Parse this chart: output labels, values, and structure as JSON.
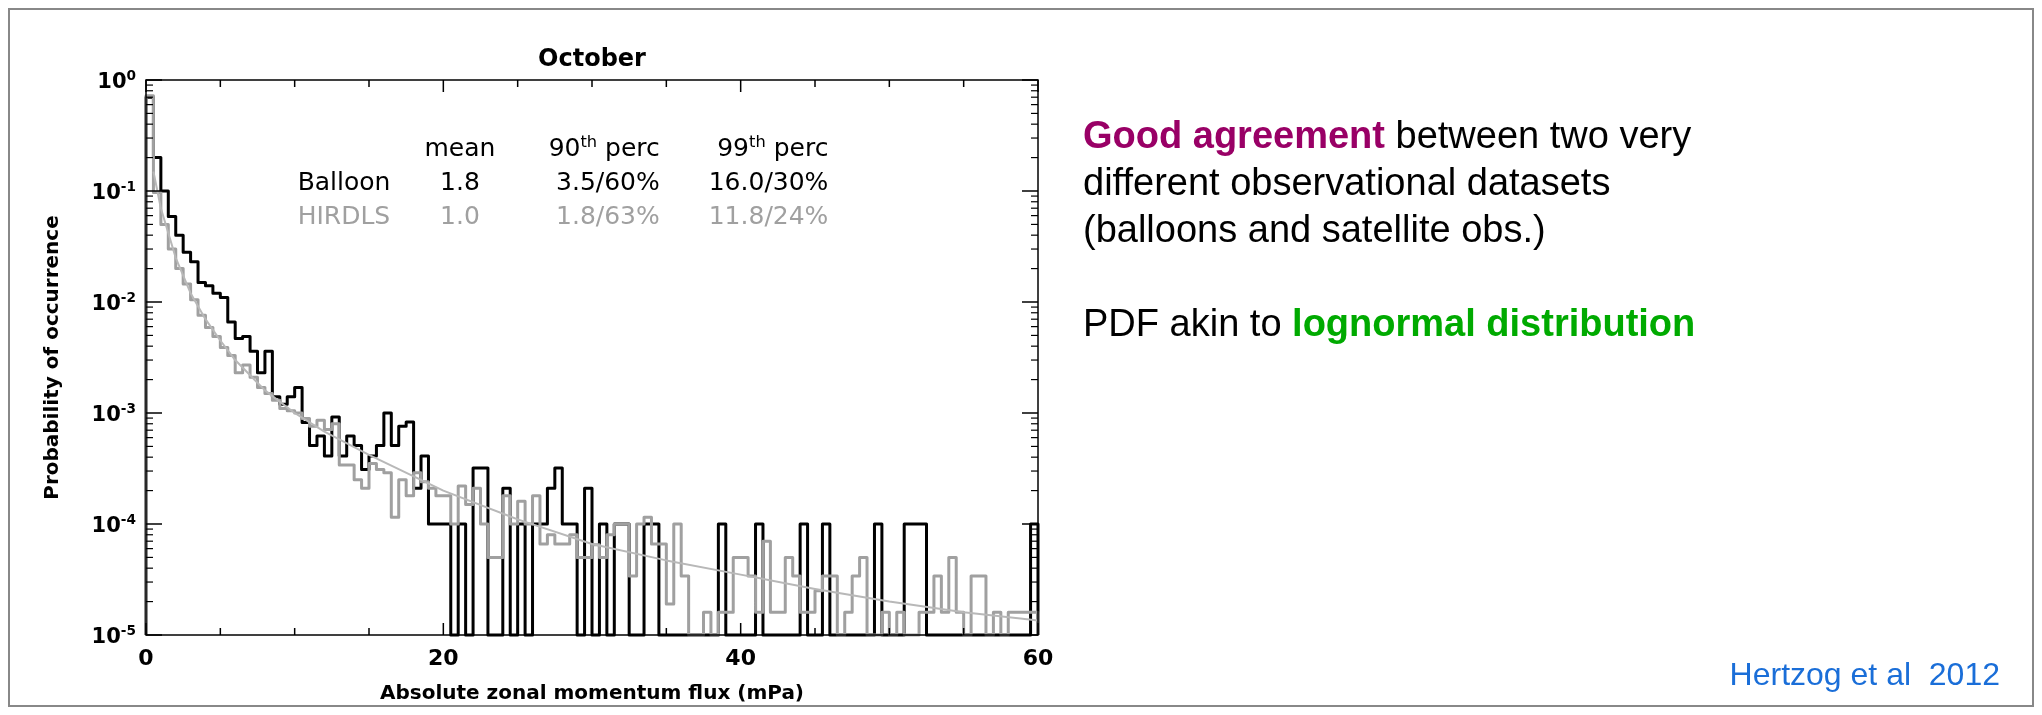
{
  "chart_data": {
    "type": "histogram",
    "title": "October",
    "xlabel": "Absolute zonal momentum flux (mPa)",
    "ylabel": "Probability of occurrence",
    "bins": [
      0,
      0.5,
      1,
      1.5,
      2,
      2.5,
      3,
      3.5,
      4,
      4.5,
      5,
      5.5,
      6,
      6.5,
      7,
      7.5,
      8,
      8.5,
      9,
      9.5,
      10,
      10.5,
      11,
      11.5,
      12,
      12.5,
      13,
      13.5,
      14,
      14.5,
      15,
      15.5,
      16,
      16.5,
      17,
      17.5,
      18,
      18.5,
      19,
      19.5,
      20,
      20.5,
      21,
      21.5,
      22,
      22.5,
      23,
      23.5,
      24,
      24.5,
      25,
      25.5,
      26,
      26.5,
      27,
      27.5,
      28,
      28.5,
      29,
      29.5,
      30,
      30.5,
      31,
      31.5,
      32,
      32.5,
      33,
      33.5,
      34,
      34.5,
      35,
      35.5,
      36,
      36.5,
      37,
      37.5,
      38,
      38.5,
      39,
      39.5,
      40,
      40.5,
      41,
      41.5,
      42,
      42.5,
      43,
      43.5,
      44,
      44.5,
      45,
      45.5,
      46,
      46.5,
      47,
      47.5,
      48,
      48.5,
      49,
      49.5,
      50,
      50.5,
      51,
      51.5,
      52,
      52.5,
      53,
      53.5,
      54,
      54.5,
      55,
      55.5,
      56,
      56.5,
      57,
      57.5,
      58,
      58.5,
      59,
      59.5,
      60
    ],
    "series": [
      {
        "name": "Balloon",
        "color": "#000000",
        "values": [
          0.7,
          0.2,
          0.1,
          0.059,
          0.04,
          0.028,
          0.023,
          0.015,
          0.014,
          0.012,
          0.011,
          0.0066,
          0.0047,
          0.0049,
          0.0036,
          0.0023,
          0.0036,
          0.0014,
          0.0012,
          0.0014,
          0.0017,
          0.00082,
          0.00051,
          0.00062,
          0.00041,
          0.00092,
          0.00041,
          0.00062,
          0.00051,
          0.00031,
          0.00041,
          0.00051,
          0.001,
          0.00051,
          0.00076,
          0.00083,
          0.00021,
          0.00041,
          0.0001,
          0.0001,
          0.0001,
          1e-05,
          0.0001,
          1e-05,
          0.00032,
          0.00032,
          1e-05,
          1e-05,
          0.00021,
          1e-05,
          0.0001,
          1e-05,
          0.0001,
          0.0001,
          0.00021,
          0.00032,
          0.0001,
          0.0001,
          1e-05,
          0.00021,
          1e-05,
          0.0001,
          1e-05,
          0.0001,
          0.0001,
          1e-05,
          1e-05,
          0.0001,
          0.0001,
          1e-05,
          1e-05,
          1e-05,
          1e-05,
          1e-05,
          1e-05,
          1e-05,
          1e-05,
          0.0001,
          1e-05,
          1e-05,
          1e-05,
          1e-05,
          0.0001,
          1e-05,
          1e-05,
          1e-05,
          1e-05,
          1e-05,
          0.0001,
          1e-05,
          1e-05,
          0.0001,
          1e-05,
          1e-05,
          1e-05,
          1e-05,
          1e-05,
          1e-05,
          0.0001,
          1e-05,
          1e-05,
          1e-05,
          0.0001,
          0.0001,
          0.0001,
          1e-05,
          1e-05,
          1e-05,
          1e-05,
          1e-05,
          1e-05,
          1e-05,
          1e-05,
          1e-05,
          1e-05,
          1e-05,
          1e-05,
          1e-05,
          1e-05,
          0.0001
        ]
      },
      {
        "name": "HIRDLS",
        "color": "#a0a0a0",
        "values": [
          0.72,
          0.097,
          0.05,
          0.03,
          0.02,
          0.0145,
          0.0105,
          0.0076,
          0.0059,
          0.0049,
          0.0039,
          0.0033,
          0.0023,
          0.0027,
          0.0021,
          0.0017,
          0.0015,
          0.0013,
          0.0011,
          0.00105,
          0.001,
          0.00089,
          0.00076,
          0.00086,
          0.00071,
          0.0008,
          0.00034,
          0.00034,
          0.00025,
          0.00021,
          0.00035,
          0.00031,
          0.00029,
          0.000115,
          0.00025,
          0.00018,
          0.00029,
          0.00024,
          0.00021,
          0.00018,
          0.00018,
          0.0001,
          0.00022,
          0.00015,
          0.00021,
          0.0001,
          5e-05,
          5e-05,
          0.00018,
          0.0001,
          0.00016,
          0.0001,
          0.00018,
          6.6e-05,
          8e-05,
          6.6e-05,
          6.6e-05,
          8e-05,
          5e-05,
          5e-05,
          6.5e-05,
          5e-05,
          8e-05,
          0.0001,
          0.0001,
          3.4e-05,
          0.0001,
          0.000115,
          6.6e-05,
          6.6e-05,
          1.9e-05,
          0.0001,
          3.4e-05,
          1e-05,
          1e-05,
          1.6e-05,
          1e-05,
          1.6e-05,
          1.6e-05,
          5e-05,
          5e-05,
          3.4e-05,
          1.6e-05,
          7e-05,
          1.6e-05,
          1.6e-05,
          5e-05,
          3.4e-05,
          1.6e-05,
          1.6e-05,
          2.5e-05,
          3.4e-05,
          3.4e-05,
          1e-05,
          1.6e-05,
          3.4e-05,
          5e-05,
          1e-05,
          1e-05,
          1.6e-05,
          1e-05,
          1.6e-05,
          1e-05,
          1e-05,
          1.6e-05,
          1.6e-05,
          3.4e-05,
          1.6e-05,
          5e-05,
          1.6e-05,
          1e-05,
          3.4e-05,
          3.4e-05,
          1e-05,
          1.6e-05,
          1e-05,
          1.6e-05,
          1.6e-05,
          1.6e-05,
          1.6e-05
        ]
      },
      {
        "type": "line",
        "color": "#b8b8b8",
        "x": [
          0.5,
          1,
          2,
          3,
          4,
          5,
          6,
          8,
          10,
          12,
          15,
          20,
          25,
          30,
          35,
          40,
          45,
          50,
          55,
          60
        ],
        "values": [
          0.15,
          0.07,
          0.025,
          0.012,
          0.007,
          0.0045,
          0.003,
          0.0016,
          0.001,
          0.00068,
          0.00042,
          0.0002,
          0.00011,
          6.6e-05,
          4.7e-05,
          3.5e-05,
          2.6e-05,
          2e-05,
          1.6e-05,
          1.35e-05
        ]
      }
    ],
    "xlim": [
      0,
      60
    ],
    "xticks": [
      0,
      {
        "value": 5,
        "label": null
      },
      {
        "value": 10,
        "label": null
      },
      {
        "value": 15,
        "label": null
      },
      20,
      {
        "value": 25,
        "label": null
      },
      {
        "value": 30,
        "label": null
      },
      {
        "value": 35,
        "label": null
      },
      40,
      {
        "value": 45,
        "label": null
      },
      {
        "value": 50,
        "label": null
      },
      {
        "value": 55,
        "label": null
      },
      60
    ],
    "ylim": [
      1e-05,
      1
    ],
    "yticks": [
      {
        "value": 1e-05,
        "label": "10$^{-5}$"
      },
      {
        "value": 0.0001,
        "label": "10$^{-4}$"
      },
      {
        "value": 0.001,
        "label": "10$^{-3}$"
      },
      {
        "value": 0.01,
        "label": "10$^{-2}$"
      },
      {
        "value": 0.1,
        "label": "10$^{-1}$"
      },
      {
        "value": 1,
        "label": "10$^{0}$"
      }
    ],
    "log": "y",
    "legend": "top",
    "annotations": [
      "mean",
      "90$^{th}$ perc",
      "99$^{th}$ perc",
      "1.8",
      "3.5/60%",
      "16.0/30%",
      "1.0",
      "1.8/63%",
      "11.8/24%",
      "Good agreement",
      "between two very different observational datasets (balloons and satellite obs.)",
      "PDF akin to",
      "lognormal distribution",
      "Hertzog et al  2012"
    ]
  }
}
